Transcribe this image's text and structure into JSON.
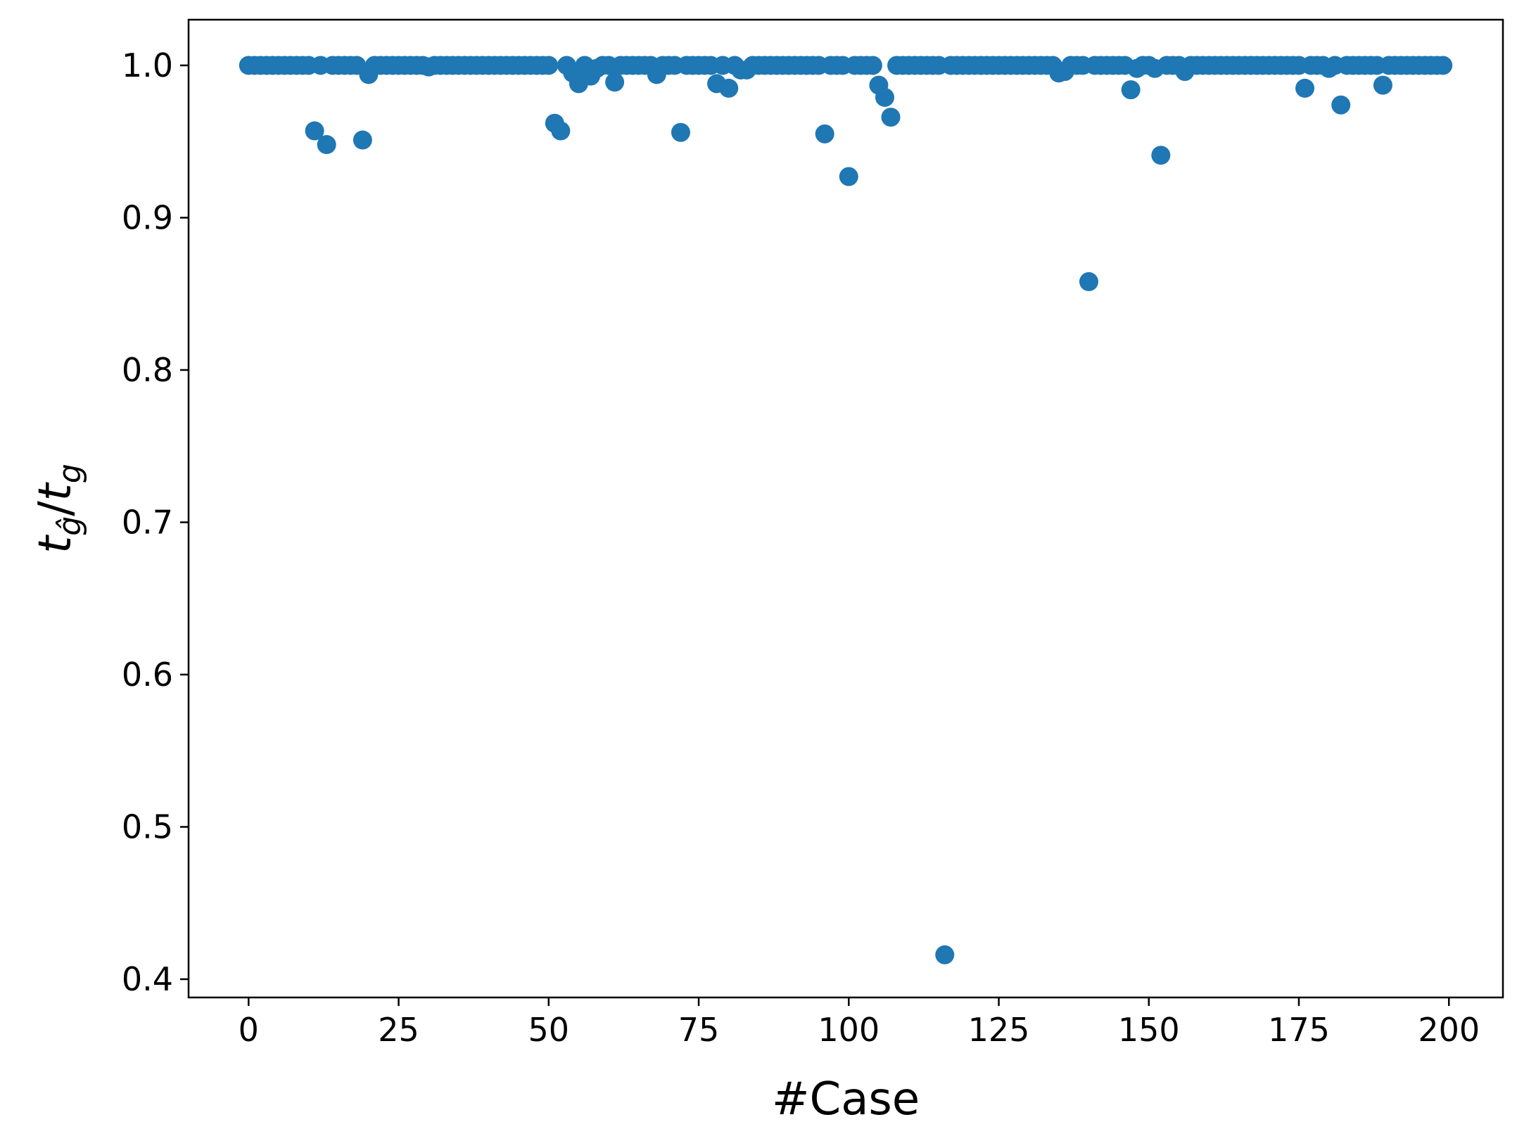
{
  "chart_data": {
    "type": "scatter",
    "title": "",
    "xlabel": "#Case",
    "ylabel": "t_ĝ / t_g",
    "ylabel_parts": {
      "main_var": "t",
      "main_sub": "ĝ",
      "divider": "/",
      "denom_var": "t",
      "denom_sub": "g"
    },
    "xlim": [
      -10,
      209
    ],
    "ylim": [
      0.388,
      1.03
    ],
    "xticks": [
      0,
      25,
      50,
      75,
      100,
      125,
      150,
      175,
      200
    ],
    "xtick_labels": [
      "0",
      "25",
      "50",
      "75",
      "100",
      "125",
      "150",
      "175",
      "200"
    ],
    "yticks": [
      0.4,
      0.5,
      0.6,
      0.7,
      0.8,
      0.9,
      1.0
    ],
    "ytick_labels": [
      "0.4",
      "0.5",
      "0.6",
      "0.7",
      "0.8",
      "0.9",
      "1.0"
    ],
    "grid": false,
    "legend": "none",
    "marker_color": "#1f77b4",
    "series": [
      {
        "x": [
          0,
          1,
          2,
          3,
          4,
          5,
          6,
          7,
          8,
          9,
          10,
          11,
          12,
          13,
          14,
          15,
          16,
          17,
          18,
          19,
          20,
          21,
          22,
          23,
          24,
          25,
          26,
          27,
          28,
          29,
          30,
          31,
          32,
          33,
          34,
          35,
          36,
          37,
          38,
          39,
          40,
          41,
          42,
          43,
          44,
          45,
          46,
          47,
          48,
          49,
          50,
          51,
          52,
          53,
          54,
          55,
          56,
          57,
          58,
          59,
          60,
          61,
          62,
          63,
          64,
          65,
          66,
          67,
          68,
          69,
          70,
          71,
          72,
          73,
          74,
          75,
          76,
          77,
          78,
          79,
          80,
          81,
          82,
          83,
          84,
          85,
          86,
          87,
          88,
          89,
          90,
          91,
          92,
          93,
          94,
          95,
          96,
          97,
          98,
          99,
          100,
          101,
          102,
          103,
          104,
          105,
          106,
          107,
          108,
          109,
          110,
          111,
          112,
          113,
          114,
          115,
          116,
          117,
          118,
          119,
          120,
          121,
          122,
          123,
          124,
          125,
          126,
          127,
          128,
          129,
          130,
          131,
          132,
          133,
          134,
          135,
          136,
          137,
          138,
          139,
          140,
          141,
          142,
          143,
          144,
          145,
          146,
          147,
          148,
          149,
          150,
          151,
          152,
          153,
          154,
          155,
          156,
          157,
          158,
          159,
          160,
          161,
          162,
          163,
          164,
          165,
          166,
          167,
          168,
          169,
          170,
          171,
          172,
          173,
          174,
          175,
          176,
          177,
          178,
          179,
          180,
          181,
          182,
          183,
          184,
          185,
          186,
          187,
          188,
          189,
          190,
          191,
          192,
          193,
          194,
          195,
          196,
          197,
          198,
          199
        ],
        "y": [
          1.0,
          1.0,
          1.0,
          1.0,
          1.0,
          1.0,
          1.0,
          1.0,
          1.0,
          1.0,
          1.0,
          0.957,
          1.0,
          0.948,
          1.0,
          1.0,
          1.0,
          1.0,
          1.0,
          0.951,
          0.994,
          1.0,
          1.0,
          1.0,
          1.0,
          1.0,
          1.0,
          1.0,
          1.0,
          1.0,
          0.999,
          1.0,
          1.0,
          1.0,
          1.0,
          1.0,
          1.0,
          1.0,
          1.0,
          1.0,
          1.0,
          1.0,
          1.0,
          1.0,
          1.0,
          1.0,
          1.0,
          1.0,
          1.0,
          1.0,
          1.0,
          0.962,
          0.957,
          1.0,
          0.995,
          0.988,
          1.0,
          0.993,
          0.998,
          1.0,
          1.0,
          0.989,
          1.0,
          1.0,
          1.0,
          1.0,
          1.0,
          1.0,
          0.994,
          1.0,
          1.0,
          1.0,
          0.956,
          1.0,
          1.0,
          1.0,
          1.0,
          1.0,
          0.988,
          1.0,
          0.985,
          1.0,
          0.997,
          0.997,
          1.0,
          1.0,
          1.0,
          1.0,
          1.0,
          1.0,
          1.0,
          1.0,
          1.0,
          1.0,
          1.0,
          1.0,
          0.955,
          1.0,
          1.0,
          1.0,
          0.927,
          1.0,
          1.0,
          1.0,
          1.0,
          0.987,
          0.979,
          0.966,
          1.0,
          1.0,
          1.0,
          1.0,
          1.0,
          1.0,
          1.0,
          1.0,
          0.416,
          1.0,
          1.0,
          1.0,
          1.0,
          1.0,
          1.0,
          1.0,
          1.0,
          1.0,
          1.0,
          1.0,
          1.0,
          1.0,
          1.0,
          1.0,
          1.0,
          1.0,
          1.0,
          0.995,
          0.996,
          1.0,
          1.0,
          1.0,
          0.858,
          1.0,
          1.0,
          1.0,
          1.0,
          1.0,
          1.0,
          0.984,
          0.998,
          1.0,
          1.0,
          0.998,
          0.941,
          1.0,
          1.0,
          1.0,
          0.996,
          1.0,
          1.0,
          1.0,
          1.0,
          1.0,
          1.0,
          1.0,
          1.0,
          1.0,
          1.0,
          1.0,
          1.0,
          1.0,
          1.0,
          1.0,
          1.0,
          1.0,
          1.0,
          1.0,
          0.985,
          1.0,
          1.0,
          1.0,
          0.998,
          1.0,
          0.974,
          1.0,
          1.0,
          1.0,
          1.0,
          1.0,
          1.0,
          0.987,
          1.0,
          1.0,
          1.0,
          1.0,
          1.0,
          1.0,
          1.0,
          1.0,
          1.0,
          1.0
        ]
      }
    ]
  }
}
